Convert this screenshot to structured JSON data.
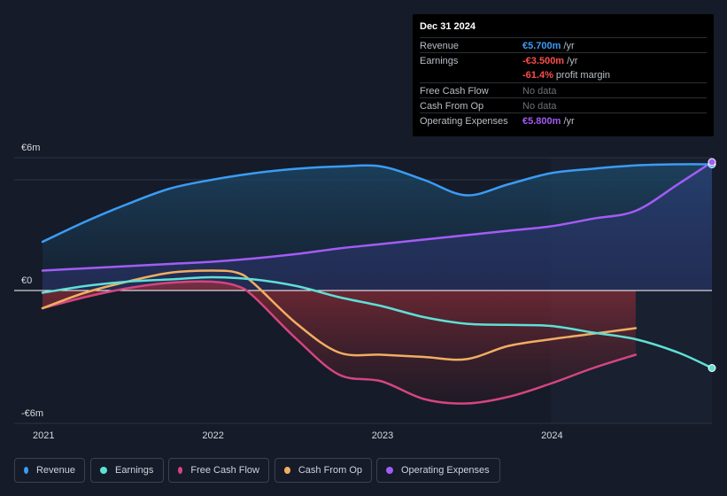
{
  "tooltip": {
    "date": "Dec 31 2024",
    "rows": [
      {
        "label": "Revenue",
        "value": "€5.700m",
        "unit": " /yr",
        "color": "#3b9cf5"
      },
      {
        "label": "Earnings",
        "value": "-€3.500m",
        "unit": " /yr",
        "color": "#ff4d4d"
      },
      {
        "label": "",
        "value": "-61.4%",
        "unit": " profit margin",
        "color": "#ff4d4d"
      },
      {
        "label": "Free Cash Flow",
        "value": "No data",
        "unit": "",
        "color": "#6d727b"
      },
      {
        "label": "Cash From Op",
        "value": "No data",
        "unit": "",
        "color": "#6d727b"
      },
      {
        "label": "Operating Expenses",
        "value": "€5.800m",
        "unit": " /yr",
        "color": "#a35cf5"
      }
    ]
  },
  "legend": [
    {
      "label": "Revenue",
      "color": "#3b9cf5"
    },
    {
      "label": "Earnings",
      "color": "#5fe0d6"
    },
    {
      "label": "Free Cash Flow",
      "color": "#d5457f"
    },
    {
      "label": "Cash From Op",
      "color": "#f0ae62"
    },
    {
      "label": "Operating Expenses",
      "color": "#a35cf5"
    }
  ],
  "chart_data": {
    "type": "area",
    "title": "",
    "xlabel": "",
    "ylabel": "",
    "xlim": [
      2021.0,
      2024.95
    ],
    "ylim": [
      -6,
      6
    ],
    "y_tick_labels": [
      {
        "value": 6,
        "label": "€6m"
      },
      {
        "value": 0,
        "label": "€0"
      },
      {
        "value": -6,
        "label": "-€6m"
      }
    ],
    "x_tick_labels": [
      {
        "value": 2021,
        "label": "2021"
      },
      {
        "value": 2022,
        "label": "2022"
      },
      {
        "value": 2023,
        "label": "2023"
      },
      {
        "value": 2024,
        "label": "2024"
      }
    ],
    "highlight_from": 2024.0,
    "series": [
      {
        "name": "Revenue",
        "color": "#3b9cf5",
        "x": [
          2021.0,
          2021.25,
          2021.5,
          2021.75,
          2022.0,
          2022.25,
          2022.5,
          2022.75,
          2023.0,
          2023.25,
          2023.5,
          2023.75,
          2024.0,
          2024.25,
          2024.5,
          2024.75,
          2024.95
        ],
        "y": [
          2.2,
          3.1,
          3.9,
          4.6,
          5.0,
          5.3,
          5.5,
          5.6,
          5.6,
          5.0,
          4.3,
          4.8,
          5.3,
          5.5,
          5.65,
          5.7,
          5.7
        ]
      },
      {
        "name": "Earnings",
        "color": "#5fe0d6",
        "x": [
          2021.0,
          2021.25,
          2021.5,
          2021.75,
          2022.0,
          2022.25,
          2022.5,
          2022.75,
          2023.0,
          2023.25,
          2023.5,
          2023.75,
          2024.0,
          2024.25,
          2024.5,
          2024.75,
          2024.95
        ],
        "y": [
          -0.1,
          0.2,
          0.4,
          0.5,
          0.6,
          0.5,
          0.2,
          -0.3,
          -0.7,
          -1.2,
          -1.5,
          -1.55,
          -1.6,
          -1.9,
          -2.2,
          -2.8,
          -3.5
        ]
      },
      {
        "name": "Free Cash Flow",
        "color": "#d5457f",
        "x": [
          2021.0,
          2021.25,
          2021.5,
          2021.75,
          2022.0,
          2022.15,
          2022.25,
          2022.5,
          2022.75,
          2023.0,
          2023.25,
          2023.5,
          2023.75,
          2024.0,
          2024.25,
          2024.5
        ],
        "y": [
          -0.8,
          -0.3,
          0.1,
          0.35,
          0.4,
          0.2,
          -0.3,
          -2.2,
          -3.8,
          -4.1,
          -4.9,
          -5.1,
          -4.8,
          -4.2,
          -3.5,
          -2.9
        ]
      },
      {
        "name": "Cash From Op",
        "color": "#f0ae62",
        "x": [
          2021.0,
          2021.25,
          2021.5,
          2021.75,
          2022.0,
          2022.15,
          2022.25,
          2022.5,
          2022.75,
          2023.0,
          2023.25,
          2023.5,
          2023.75,
          2024.0,
          2024.25,
          2024.5
        ],
        "y": [
          -0.8,
          -0.1,
          0.4,
          0.8,
          0.9,
          0.8,
          0.3,
          -1.5,
          -2.8,
          -2.9,
          -3.0,
          -3.1,
          -2.5,
          -2.2,
          -1.95,
          -1.7
        ]
      },
      {
        "name": "Operating Expenses",
        "color": "#a35cf5",
        "x": [
          2021.0,
          2021.25,
          2021.5,
          2021.75,
          2022.0,
          2022.25,
          2022.5,
          2022.75,
          2023.0,
          2023.25,
          2023.5,
          2023.75,
          2024.0,
          2024.25,
          2024.5,
          2024.75,
          2024.95
        ],
        "y": [
          0.9,
          1.0,
          1.1,
          1.2,
          1.3,
          1.45,
          1.65,
          1.9,
          2.1,
          2.3,
          2.5,
          2.7,
          2.9,
          3.25,
          3.6,
          4.8,
          5.8
        ]
      }
    ]
  }
}
